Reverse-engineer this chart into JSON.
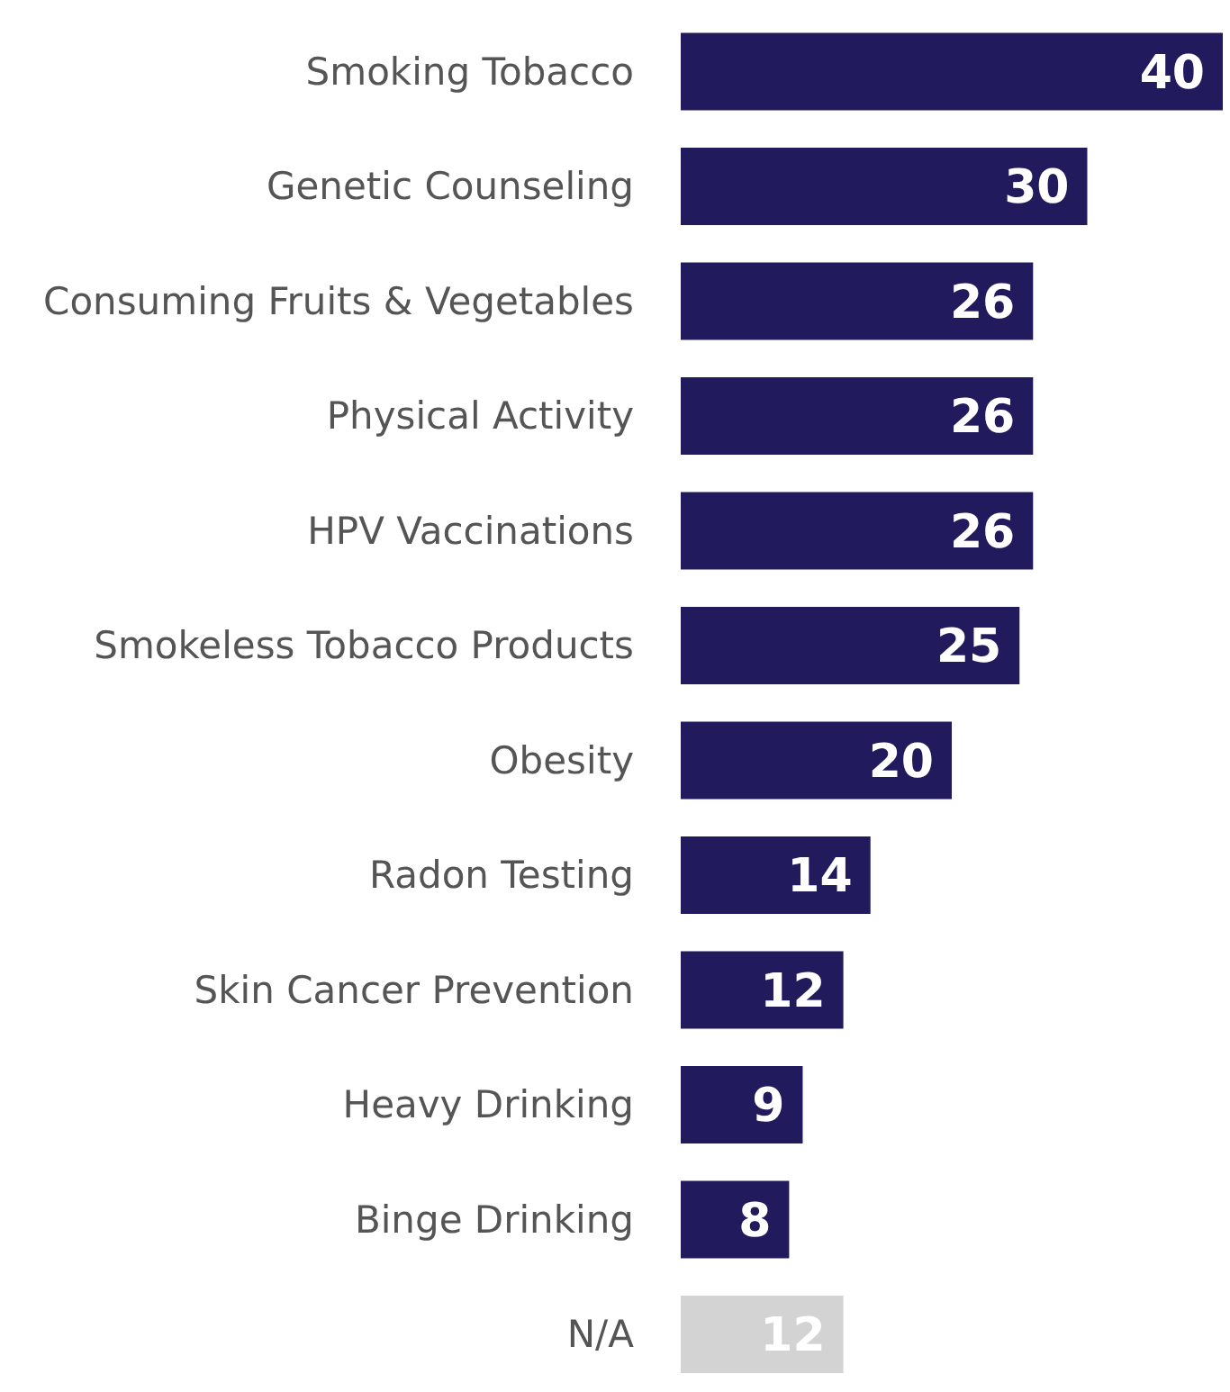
{
  "chart_data": {
    "type": "bar",
    "orientation": "horizontal",
    "categories": [
      "Smoking Tobacco",
      "Genetic Counseling",
      "Consuming Fruits & Vegetables",
      "Physical Activity",
      "HPV Vaccinations",
      "Smokeless Tobacco Products",
      "Obesity",
      "Radon Testing",
      "Skin Cancer Prevention",
      "Heavy Drinking",
      "Binge Drinking",
      "N/A"
    ],
    "values": [
      40,
      30,
      26,
      26,
      26,
      25,
      20,
      14,
      12,
      9,
      8,
      12
    ],
    "colors": [
      "#211a5c",
      "#211a5c",
      "#211a5c",
      "#211a5c",
      "#211a5c",
      "#211a5c",
      "#211a5c",
      "#211a5c",
      "#211a5c",
      "#211a5c",
      "#211a5c",
      "#d3d3d3"
    ],
    "data_labels": true,
    "grid": false,
    "legend": false
  }
}
